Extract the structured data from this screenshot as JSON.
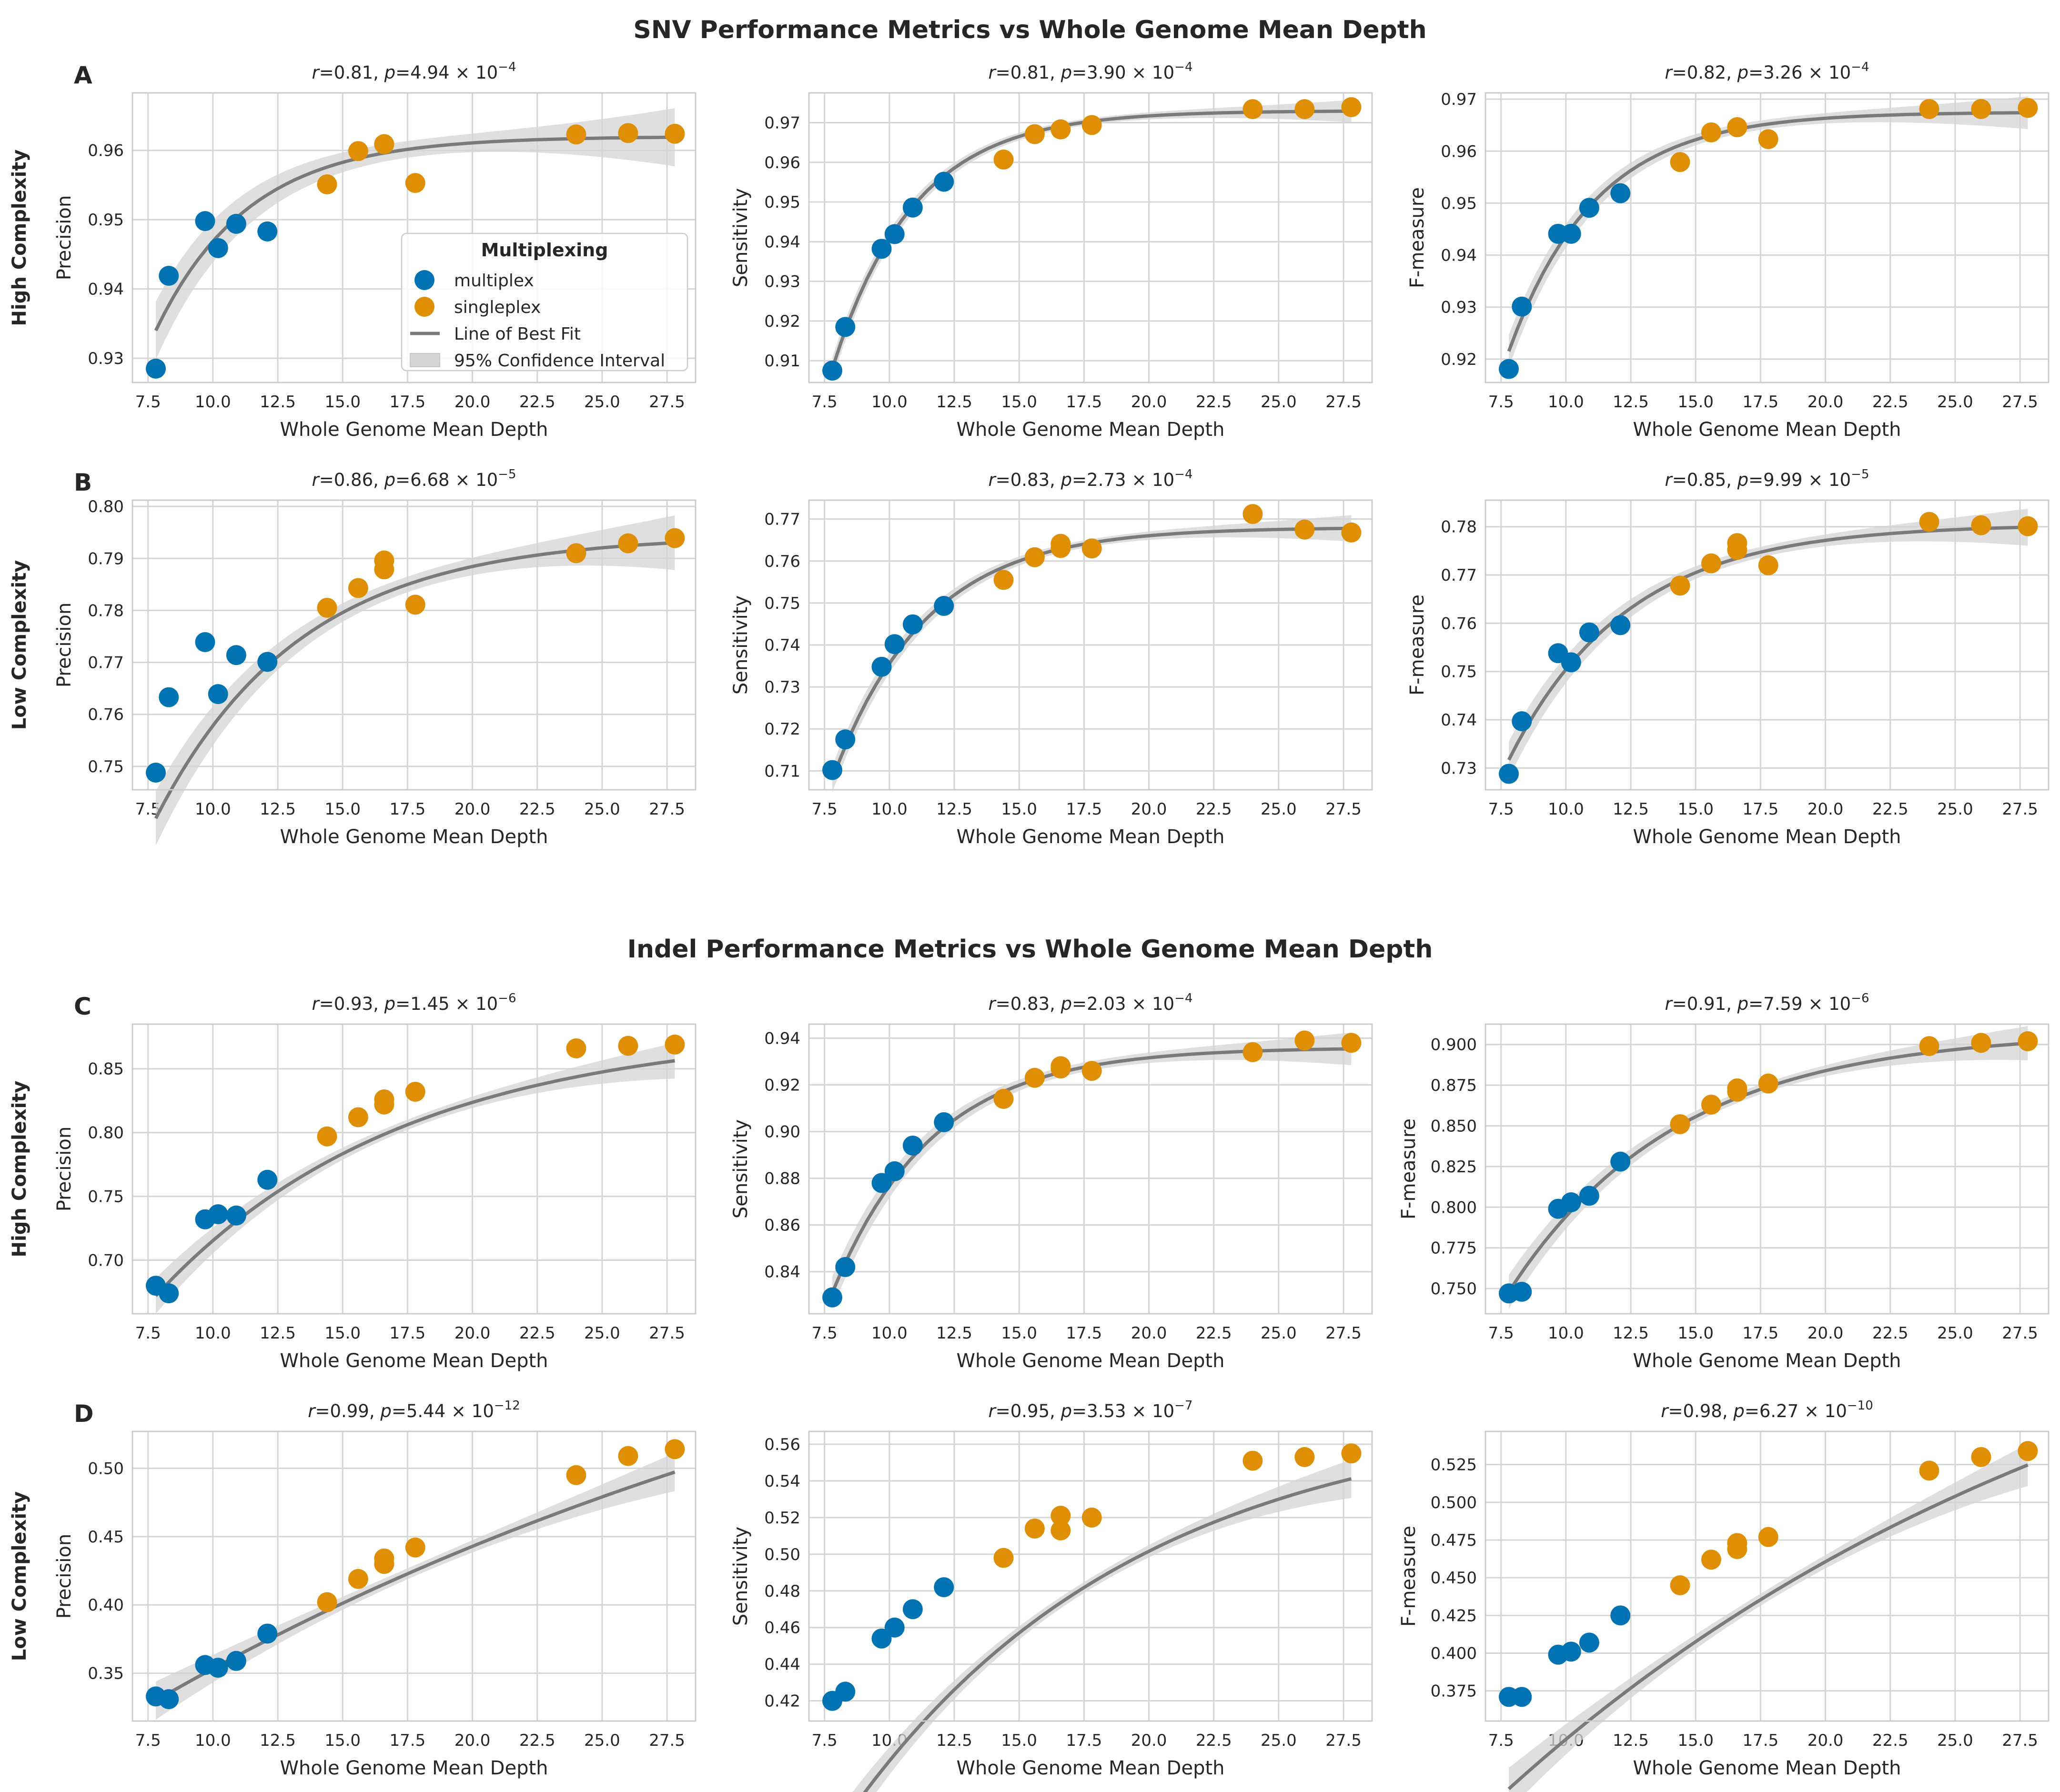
{
  "colors": {
    "multiplex": "#0173b2",
    "singleplex": "#de8f05",
    "fit_line": "#7a7a7a",
    "ci_band": "#d4d4d4",
    "grid": "#d5d5d5",
    "spine": "#cccccc",
    "text": "#262626"
  },
  "sections": [
    {
      "title": "SNV Performance Metrics vs Whole Genome Mean Depth"
    },
    {
      "title": "Indel Performance Metrics vs Whole Genome Mean Depth"
    }
  ],
  "legend": {
    "title": "Multiplexing",
    "entries": [
      {
        "label": "multiplex",
        "kind": "marker",
        "color_key": "multiplex"
      },
      {
        "label": "singleplex",
        "kind": "marker",
        "color_key": "singleplex"
      },
      {
        "label": "Line of Best Fit",
        "kind": "line",
        "color_key": "fit_line"
      },
      {
        "label": "95% Confidence Interval",
        "kind": "patch",
        "color_key": "ci_band"
      }
    ]
  },
  "chart_data": {
    "type": "scatter",
    "x_label": "Whole Genome Mean Depth",
    "x_lim": [
      6.9,
      28.6
    ],
    "x_ticks": [
      7.5,
      10.0,
      12.5,
      15.0,
      17.5,
      20.0,
      22.5,
      25.0,
      27.5
    ],
    "x_tick_labels": [
      "7.5",
      "10.0",
      "12.5",
      "15.0",
      "17.5",
      "20.0",
      "22.5",
      "25.0",
      "27.5"
    ],
    "x_multiplex": [
      7.8,
      8.3,
      9.7,
      10.2,
      10.9,
      12.1
    ],
    "x_singleplex": [
      14.4,
      15.6,
      16.6,
      16.6,
      17.8,
      24.0,
      26.0,
      27.8
    ],
    "rows": [
      {
        "panel_letter": "A",
        "row_label": "High Complexity",
        "charts": [
          {
            "r": "0.81",
            "p_mant": "4.94",
            "p_exp": "−4",
            "y_label": "Precision",
            "y_lim": [
              0.9265,
              0.9683
            ],
            "y_ticks": [
              0.93,
              0.94,
              0.95,
              0.96
            ],
            "y_tick_labels": [
              "0.93",
              "0.94",
              "0.95",
              "0.96"
            ],
            "multiplex": [
              0.9285,
              0.9419,
              0.9498,
              0.9459,
              0.9494,
              0.9483
            ],
            "singleplex": [
              0.9551,
              0.9599,
              0.9609,
              0.9609,
              0.9553,
              0.9623,
              0.9625,
              0.9624
            ],
            "fit": {
              "a": 0.962,
              "b": 0.028,
              "k": 0.28
            },
            "ci": 0.0012,
            "legend": true
          },
          {
            "r": "0.81",
            "p_mant": "3.90",
            "p_exp": "−4",
            "y_label": "Sensitivity",
            "y_lim": [
              0.9045,
              0.9775
            ],
            "y_ticks": [
              0.91,
              0.92,
              0.93,
              0.94,
              0.95,
              0.96,
              0.97
            ],
            "y_tick_labels": [
              "0.91",
              "0.92",
              "0.93",
              "0.94",
              "0.95",
              "0.96",
              "0.97"
            ],
            "multiplex": [
              0.9075,
              0.9185,
              0.9382,
              0.9419,
              0.9486,
              0.9551
            ],
            "singleplex": [
              0.9607,
              0.9671,
              0.9683,
              0.9683,
              0.9694,
              0.9734,
              0.9734,
              0.9739
            ],
            "fit": {
              "a": 0.973,
              "b": 0.065,
              "k": 0.32
            },
            "ci": 0.0008
          },
          {
            "r": "0.82",
            "p_mant": "3.26",
            "p_exp": "−4",
            "y_label": "F-measure",
            "y_lim": [
              0.9155,
              0.9712
            ],
            "y_ticks": [
              0.92,
              0.93,
              0.94,
              0.95,
              0.96,
              0.97
            ],
            "y_tick_labels": [
              "0.92",
              "0.93",
              "0.94",
              "0.95",
              "0.96",
              "0.97"
            ],
            "multiplex": [
              0.9181,
              0.9301,
              0.9441,
              0.9441,
              0.9491,
              0.9519
            ],
            "singleplex": [
              0.9579,
              0.9636,
              0.9646,
              0.9646,
              0.9623,
              0.9681,
              0.9681,
              0.9683
            ],
            "fit": {
              "a": 0.9675,
              "b": 0.046,
              "k": 0.3
            },
            "ci": 0.0009
          }
        ]
      },
      {
        "panel_letter": "B",
        "row_label": "Low Complexity",
        "charts": [
          {
            "r": "0.86",
            "p_mant": "6.68",
            "p_exp": "−5",
            "y_label": "Precision",
            "y_lim": [
              0.7455,
              0.8012
            ],
            "y_ticks": [
              0.75,
              0.76,
              0.77,
              0.78,
              0.79,
              0.8
            ],
            "y_tick_labels": [
              "0.75",
              "0.76",
              "0.77",
              "0.78",
              "0.79",
              "0.80"
            ],
            "multiplex": [
              0.7488,
              0.7633,
              0.7739,
              0.7639,
              0.7714,
              0.7701
            ],
            "singleplex": [
              0.7805,
              0.7843,
              0.7879,
              0.7896,
              0.7811,
              0.791,
              0.7929,
              0.7939
            ],
            "fit": {
              "a": 0.7945,
              "b": 0.0545,
              "k": 0.18
            },
            "ci": 0.0015
          },
          {
            "r": "0.83",
            "p_mant": "2.73",
            "p_exp": "−4",
            "y_label": "Sensitivity",
            "y_lim": [
              0.7055,
              0.7745
            ],
            "y_ticks": [
              0.71,
              0.72,
              0.73,
              0.74,
              0.75,
              0.76,
              0.77
            ],
            "y_tick_labels": [
              "0.71",
              "0.72",
              "0.73",
              "0.74",
              "0.75",
              "0.76",
              "0.77"
            ],
            "multiplex": [
              0.7102,
              0.7175,
              0.7348,
              0.7402,
              0.7449,
              0.7493
            ],
            "singleplex": [
              0.7555,
              0.7609,
              0.7631,
              0.7641,
              0.763,
              0.7712,
              0.7675,
              0.7668
            ],
            "fit": {
              "a": 0.768,
              "b": 0.06,
              "k": 0.28
            },
            "ci": 0.0009
          },
          {
            "r": "0.85",
            "p_mant": "9.99",
            "p_exp": "−5",
            "y_label": "F-measure",
            "y_lim": [
              0.7255,
              0.7855
            ],
            "y_ticks": [
              0.73,
              0.74,
              0.75,
              0.76,
              0.77,
              0.78
            ],
            "y_tick_labels": [
              "0.73",
              "0.74",
              "0.75",
              "0.76",
              "0.77",
              "0.78"
            ],
            "multiplex": [
              0.7288,
              0.7397,
              0.7538,
              0.7519,
              0.7581,
              0.7596
            ],
            "singleplex": [
              0.7678,
              0.7724,
              0.7752,
              0.7766,
              0.772,
              0.781,
              0.7803,
              0.7801
            ],
            "fit": {
              "a": 0.7805,
              "b": 0.0488,
              "k": 0.22
            },
            "ci": 0.0011
          }
        ]
      },
      {
        "panel_letter": "C",
        "row_label": "High Complexity",
        "charts": [
          {
            "r": "0.93",
            "p_mant": "1.45",
            "p_exp": "−6",
            "y_label": "Precision",
            "y_lim": [
              0.658,
              0.885
            ],
            "y_ticks": [
              0.7,
              0.75,
              0.8,
              0.85
            ],
            "y_tick_labels": [
              "0.70",
              "0.75",
              "0.80",
              "0.85"
            ],
            "multiplex": [
              0.68,
              0.674,
              0.732,
              0.736,
              0.735,
              0.763
            ],
            "singleplex": [
              0.797,
              0.812,
              0.822,
              0.826,
              0.832,
              0.866,
              0.868,
              0.869
            ],
            "fit": {
              "a": 0.882,
              "b": 0.21,
              "k": 0.105
            },
            "ci": 0.004
          },
          {
            "r": "0.83",
            "p_mant": "2.03",
            "p_exp": "−4",
            "y_label": "Sensitivity",
            "y_lim": [
              0.822,
              0.946
            ],
            "y_ticks": [
              0.84,
              0.86,
              0.88,
              0.9,
              0.92,
              0.94
            ],
            "y_tick_labels": [
              "0.84",
              "0.86",
              "0.88",
              "0.90",
              "0.92",
              "0.94"
            ],
            "multiplex": [
              0.829,
              0.842,
              0.878,
              0.883,
              0.894,
              0.904
            ],
            "singleplex": [
              0.914,
              0.923,
              0.927,
              0.928,
              0.926,
              0.934,
              0.939,
              0.938
            ],
            "fit": {
              "a": 0.936,
              "b": 0.105,
              "k": 0.26
            },
            "ci": 0.002
          },
          {
            "r": "0.91",
            "p_mant": "7.59",
            "p_exp": "−6",
            "y_label": "F-measure",
            "y_lim": [
              0.7345,
              0.9125
            ],
            "y_ticks": [
              0.75,
              0.775,
              0.8,
              0.825,
              0.85,
              0.875,
              0.9
            ],
            "y_tick_labels": [
              "0.750",
              "0.775",
              "0.800",
              "0.825",
              "0.850",
              "0.875",
              "0.900"
            ],
            "multiplex": [
              0.747,
              0.748,
              0.799,
              0.803,
              0.807,
              0.828
            ],
            "singleplex": [
              0.851,
              0.863,
              0.871,
              0.873,
              0.876,
              0.899,
              0.901,
              0.902
            ],
            "fit": {
              "a": 0.908,
              "b": 0.16,
              "k": 0.155
            },
            "ci": 0.003
          }
        ]
      },
      {
        "panel_letter": "D",
        "row_label": "Low Complexity",
        "charts": [
          {
            "r": "0.99",
            "p_mant": "5.44",
            "p_exp": "−12",
            "y_label": "Precision",
            "y_lim": [
              0.315,
              0.527
            ],
            "y_ticks": [
              0.35,
              0.4,
              0.45,
              0.5
            ],
            "y_tick_labels": [
              "0.35",
              "0.40",
              "0.45",
              "0.50"
            ],
            "multiplex": [
              0.333,
              0.331,
              0.356,
              0.354,
              0.359,
              0.379
            ],
            "singleplex": [
              0.402,
              0.419,
              0.43,
              0.434,
              0.442,
              0.495,
              0.509,
              0.514
            ],
            "fit": {
              "a": 0.72,
              "b": 0.39,
              "k": 0.028
            },
            "ci": 0.004
          },
          {
            "r": "0.95",
            "p_mant": "3.53",
            "p_exp": "−7",
            "y_label": "Sensitivity",
            "y_lim": [
              0.409,
              0.567
            ],
            "y_ticks": [
              0.42,
              0.44,
              0.46,
              0.48,
              0.5,
              0.52,
              0.54,
              0.56
            ],
            "y_tick_labels": [
              "0.42",
              "0.44",
              "0.46",
              "0.48",
              "0.50",
              "0.52",
              "0.54",
              "0.56"
            ],
            "multiplex": [
              0.42,
              0.425,
              0.454,
              0.46,
              0.47,
              0.482
            ],
            "singleplex": [
              0.498,
              0.514,
              0.513,
              0.521,
              0.52,
              0.551,
              0.553,
              0.555
            ],
            "fit": {
              "a": 0.58,
              "b": 0.235,
              "k": 0.09
            },
            "ci": 0.003
          },
          {
            "r": "0.98",
            "p_mant": "6.27",
            "p_exp": "−10",
            "y_label": "F-measure",
            "y_lim": [
              0.355,
              0.547
            ],
            "y_ticks": [
              0.375,
              0.4,
              0.425,
              0.45,
              0.475,
              0.5,
              0.525
            ],
            "y_tick_labels": [
              "0.375",
              "0.400",
              "0.425",
              "0.450",
              "0.475",
              "0.500",
              "0.525"
            ],
            "multiplex": [
              0.371,
              0.371,
              0.399,
              0.401,
              0.407,
              0.425
            ],
            "singleplex": [
              0.445,
              0.462,
              0.469,
              0.473,
              0.477,
              0.521,
              0.53,
              0.534
            ],
            "fit": {
              "a": 0.7,
              "b": 0.39,
              "k": 0.04
            },
            "ci": 0.004
          }
        ]
      }
    ]
  }
}
